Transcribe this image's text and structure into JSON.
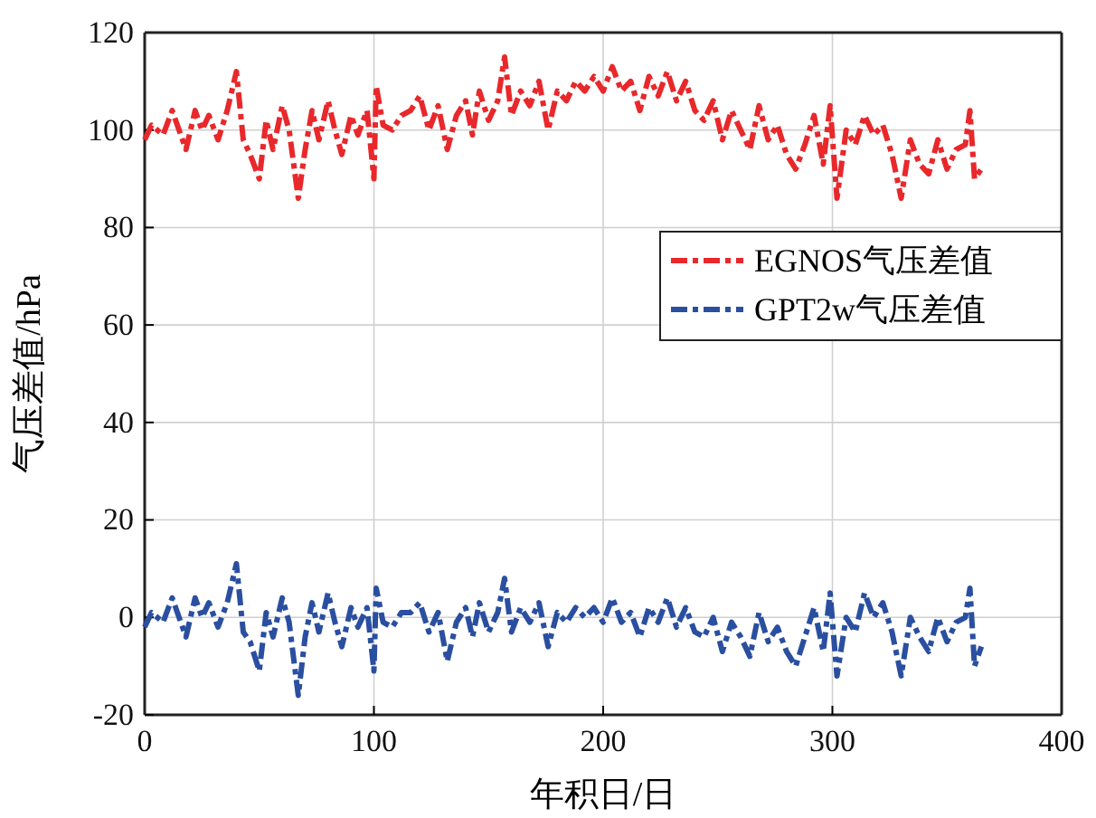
{
  "chart_data": {
    "type": "line",
    "xlabel": "年积日/日",
    "ylabel": "气压差值/hPa",
    "x": [
      0,
      3,
      8,
      12,
      15,
      18,
      22,
      25,
      28,
      32,
      36,
      40,
      43,
      46,
      50,
      53,
      56,
      60,
      63,
      67,
      70,
      73,
      76,
      80,
      83,
      86,
      90,
      93,
      97,
      100,
      101,
      104,
      108,
      112,
      116,
      120,
      124,
      128,
      132,
      136,
      140,
      143,
      146,
      150,
      154,
      157,
      160,
      164,
      168,
      172,
      176,
      180,
      184,
      188,
      192,
      196,
      200,
      204,
      208,
      212,
      216,
      220,
      224,
      228,
      232,
      236,
      240,
      244,
      248,
      252,
      256,
      260,
      264,
      268,
      272,
      276,
      280,
      284,
      288,
      292,
      296,
      299,
      302,
      306,
      310,
      314,
      318,
      322,
      326,
      330,
      334,
      338,
      342,
      346,
      350,
      354,
      358,
      360,
      362,
      365
    ],
    "series": [
      {
        "name": "EGNOS气压差值",
        "color": "#e8282b",
        "values": [
          98,
          101,
          99,
          104,
          100,
          96,
          104,
          100,
          103,
          98,
          104,
          112,
          98,
          95,
          90,
          102,
          96,
          105,
          100,
          86,
          96,
          104,
          98,
          106,
          100,
          95,
          103,
          99,
          104,
          90,
          109,
          101,
          100,
          103,
          104,
          107,
          100,
          105,
          96,
          103,
          106,
          99,
          108,
          102,
          106,
          115,
          103,
          108,
          105,
          110,
          100,
          108,
          106,
          110,
          108,
          111,
          108,
          113,
          108,
          110,
          104,
          111,
          107,
          112,
          106,
          110,
          104,
          102,
          106,
          98,
          104,
          100,
          96,
          105,
          98,
          101,
          95,
          92,
          97,
          103,
          93,
          105,
          86,
          100,
          97,
          103,
          99,
          101,
          95,
          86,
          98,
          93,
          91,
          98,
          92,
          96,
          97,
          104,
          90,
          92
        ]
      },
      {
        "name": "GPT2w气压差值",
        "color": "#2a4fa0",
        "values": [
          -2,
          1,
          -1,
          4,
          0,
          -4,
          4,
          0,
          3,
          -2,
          3,
          11,
          -3,
          -5,
          -11,
          1,
          -4,
          4,
          -1,
          -16,
          -4,
          3,
          -3,
          5,
          -1,
          -6,
          2,
          -2,
          2,
          -11,
          6,
          -1,
          -2,
          1,
          1,
          3,
          -3,
          1,
          -9,
          -1,
          2,
          -4,
          3,
          -3,
          1,
          8,
          -3,
          2,
          -1,
          3,
          -6,
          1,
          -1,
          2,
          0,
          2,
          -1,
          4,
          -1,
          1,
          -4,
          2,
          -1,
          4,
          -2,
          2,
          -3,
          -4,
          0,
          -7,
          -1,
          -4,
          -8,
          1,
          -5,
          -2,
          -7,
          -10,
          -4,
          2,
          -7,
          5,
          -12,
          0,
          -3,
          5,
          0,
          3,
          -3,
          -12,
          0,
          -4,
          -7,
          0,
          -5,
          -1,
          0,
          6,
          -10,
          -6
        ]
      }
    ],
    "xlim": [
      0,
      400
    ],
    "xticks": [
      0,
      100,
      200,
      300,
      400
    ],
    "ylim": [
      -20,
      120
    ],
    "yticks": [
      -20,
      0,
      20,
      40,
      60,
      80,
      100,
      120
    ],
    "grid": true,
    "legend": "right",
    "line_style": "dashed",
    "marker": "none"
  }
}
